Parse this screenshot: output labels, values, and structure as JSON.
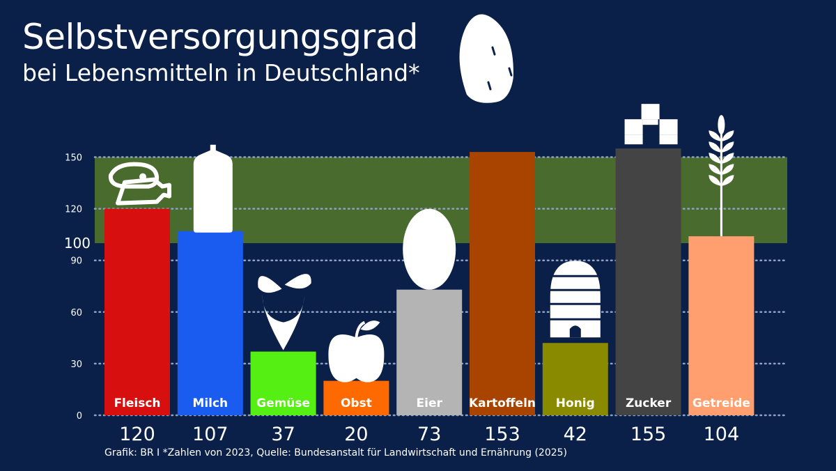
{
  "chart_data": {
    "type": "bar",
    "title": "Selbstversorgungsgrad",
    "subtitle": "bei Lebensmitteln in Deutschland*",
    "xlabel": "",
    "ylabel": "",
    "ylim": [
      0,
      160
    ],
    "yticks": [
      0,
      30,
      60,
      90,
      120,
      150
    ],
    "reference_line": {
      "value": 100,
      "label": "100"
    },
    "highlight_band": {
      "from": 100,
      "to": 150,
      "color": "#4a6b2e"
    },
    "categories": [
      "Fleisch",
      "Milch",
      "Gemüse",
      "Obst",
      "Eier",
      "Kartoffeln",
      "Honig",
      "Zucker",
      "Getreide"
    ],
    "values": [
      120,
      107,
      37,
      20,
      73,
      153,
      42,
      155,
      104
    ],
    "value_labels": [
      "120",
      "107",
      "37",
      "20",
      "73",
      "153",
      "42",
      "155",
      "104"
    ],
    "colors": [
      "#d80f0f",
      "#1a5cf0",
      "#55ef14",
      "#ff6a00",
      "#b4b4b4",
      "#a84400",
      "#8a8a00",
      "#444444",
      "#ff9e6e"
    ],
    "icons": [
      "meat-icon",
      "milk-bottle-icon",
      "beet-icon",
      "apple-icon",
      "egg-icon",
      "potato-icon",
      "beehive-icon",
      "sugar-cubes-icon",
      "wheat-icon"
    ],
    "grid": true
  },
  "footer": {
    "source": "Grafik: BR I *Zahlen von 2023, Quelle: Bundesanstalt für Landwirtschaft und Ernährung (2025)"
  }
}
